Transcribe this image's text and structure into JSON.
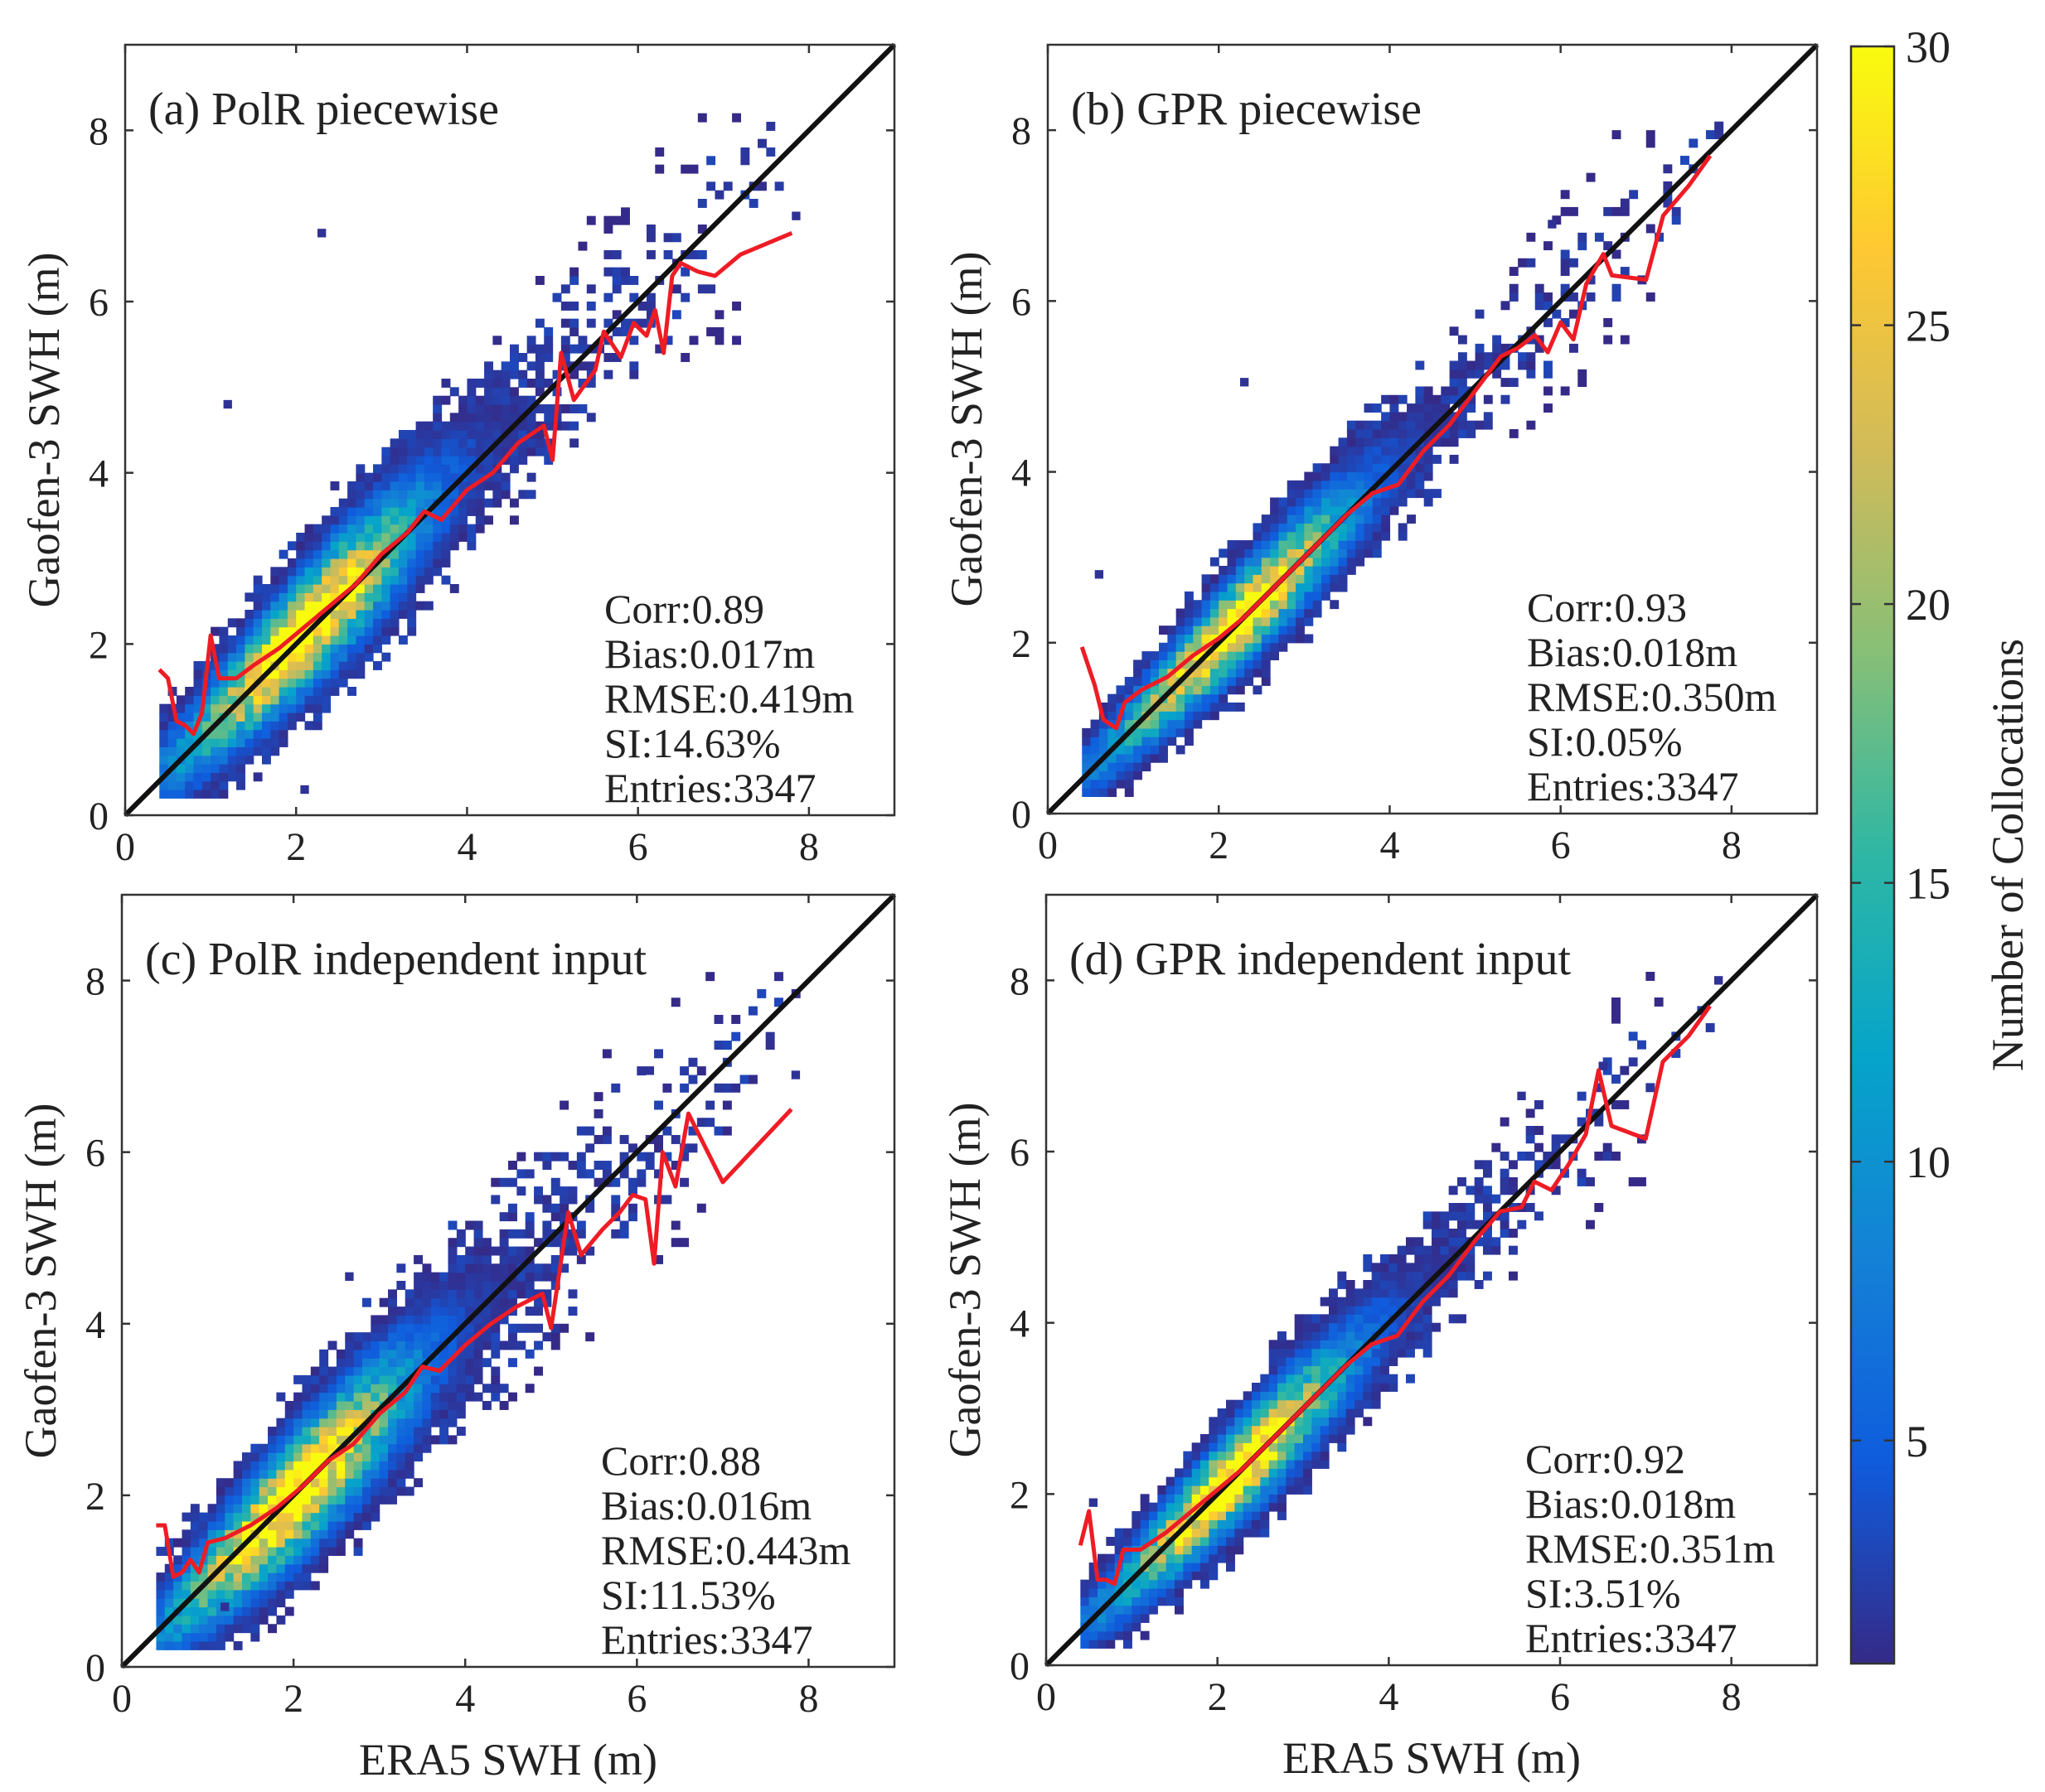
{
  "figure": {
    "colormap": {
      "name": "parula",
      "stops": [
        "#352a87",
        "#0f5cdd",
        "#1481d6",
        "#06a4ca",
        "#2eb7a4",
        "#87bf77",
        "#d1bb59",
        "#fec832",
        "#f9fb0e"
      ]
    },
    "colors": {
      "fit_line": "#ee1c25",
      "one_to_one": "#111111",
      "axes": "#333333"
    }
  },
  "colorbar": {
    "label": "Number of Collocations",
    "range": [
      1,
      30
    ],
    "ticks": [
      "5",
      "10",
      "15",
      "20",
      "25",
      "30"
    ],
    "tick_values": [
      5,
      10,
      15,
      20,
      25,
      30
    ]
  },
  "chart_data": [
    {
      "id": "a",
      "type": "heatmap",
      "title": "(a) PolR piecewise",
      "xlabel": "",
      "ylabel": "Gaofen-3 SWH (m)",
      "xlim": [
        0,
        9
      ],
      "ylim": [
        0,
        9
      ],
      "xticks": [
        "0",
        "2",
        "4",
        "6",
        "8"
      ],
      "yticks": [
        "0",
        "2",
        "4",
        "6",
        "8"
      ],
      "stats": [
        "Corr:0.89",
        "Bias:0.017m",
        "RMSE:0.419m",
        "SI:14.63%",
        "Entries:3347"
      ],
      "density": {
        "spread": 0.42,
        "bias": 0.05,
        "peak_x": 2.1,
        "seed": 11
      },
      "outliers": [
        [
          2.25,
          6.75
        ],
        [
          1.15,
          4.75
        ],
        [
          2.05,
          0.25
        ],
        [
          7.8,
          6.95
        ]
      ],
      "fit_line": [
        [
          0.4,
          1.7
        ],
        [
          0.5,
          1.6
        ],
        [
          0.6,
          1.1
        ],
        [
          0.7,
          1.05
        ],
        [
          0.8,
          0.95
        ],
        [
          0.9,
          1.2
        ],
        [
          1.0,
          2.1
        ],
        [
          1.1,
          1.6
        ],
        [
          1.3,
          1.6
        ],
        [
          1.5,
          1.75
        ],
        [
          1.8,
          1.95
        ],
        [
          2.1,
          2.2
        ],
        [
          2.4,
          2.45
        ],
        [
          2.7,
          2.7
        ],
        [
          3.0,
          3.05
        ],
        [
          3.3,
          3.3
        ],
        [
          3.5,
          3.55
        ],
        [
          3.7,
          3.45
        ],
        [
          4.0,
          3.8
        ],
        [
          4.3,
          4.0
        ],
        [
          4.6,
          4.35
        ],
        [
          4.9,
          4.55
        ],
        [
          5.0,
          4.15
        ],
        [
          5.1,
          5.4
        ],
        [
          5.25,
          4.85
        ],
        [
          5.5,
          5.2
        ],
        [
          5.6,
          5.65
        ],
        [
          5.8,
          5.35
        ],
        [
          5.95,
          5.75
        ],
        [
          6.1,
          5.6
        ],
        [
          6.2,
          5.9
        ],
        [
          6.3,
          5.4
        ],
        [
          6.4,
          6.3
        ],
        [
          6.5,
          6.45
        ],
        [
          6.7,
          6.35
        ],
        [
          6.9,
          6.3
        ],
        [
          7.2,
          6.55
        ],
        [
          7.8,
          6.8
        ]
      ]
    },
    {
      "id": "b",
      "type": "heatmap",
      "title": "(b) GPR piecewise",
      "xlabel": "",
      "ylabel": "Gaofen-3 SWH (m)",
      "xlim": [
        0,
        9
      ],
      "ylim": [
        0,
        9
      ],
      "xticks": [
        "0",
        "2",
        "4",
        "6",
        "8"
      ],
      "yticks": [
        "0",
        "2",
        "4",
        "6",
        "8"
      ],
      "stats": [
        "Corr:0.93",
        "Bias:0.018m",
        "RMSE:0.350m",
        "SI:0.05%",
        "Entries:3347"
      ],
      "density": {
        "spread": 0.33,
        "bias": 0.02,
        "peak_x": 2.2,
        "seed": 23
      },
      "outliers": [
        [
          2.25,
          5.0
        ],
        [
          0.55,
          2.75
        ],
        [
          7.8,
          8.0
        ],
        [
          5.85,
          6.85
        ]
      ],
      "fit_line": [
        [
          0.4,
          1.95
        ],
        [
          0.55,
          1.5
        ],
        [
          0.65,
          1.1
        ],
        [
          0.8,
          1.0
        ],
        [
          0.9,
          1.3
        ],
        [
          1.1,
          1.45
        ],
        [
          1.4,
          1.6
        ],
        [
          1.7,
          1.85
        ],
        [
          2.0,
          2.05
        ],
        [
          2.3,
          2.3
        ],
        [
          2.6,
          2.6
        ],
        [
          2.9,
          2.9
        ],
        [
          3.2,
          3.2
        ],
        [
          3.5,
          3.5
        ],
        [
          3.8,
          3.75
        ],
        [
          4.1,
          3.85
        ],
        [
          4.4,
          4.25
        ],
        [
          4.7,
          4.55
        ],
        [
          5.0,
          4.95
        ],
        [
          5.3,
          5.35
        ],
        [
          5.5,
          5.45
        ],
        [
          5.7,
          5.6
        ],
        [
          5.85,
          5.4
        ],
        [
          6.0,
          5.75
        ],
        [
          6.15,
          5.55
        ],
        [
          6.3,
          6.2
        ],
        [
          6.5,
          6.55
        ],
        [
          6.6,
          6.3
        ],
        [
          7.0,
          6.25
        ],
        [
          7.2,
          7.0
        ],
        [
          7.5,
          7.35
        ],
        [
          7.75,
          7.7
        ]
      ]
    },
    {
      "id": "c",
      "type": "heatmap",
      "title": "(c) PolR independent input",
      "xlabel": "ERA5 SWH (m)",
      "ylabel": "Gaofen-3 SWH (m)",
      "xlim": [
        0,
        9
      ],
      "ylim": [
        0,
        9
      ],
      "xticks": [
        "0",
        "2",
        "4",
        "6",
        "8"
      ],
      "yticks": [
        "0",
        "2",
        "4",
        "6",
        "8"
      ],
      "stats": [
        "Corr:0.88",
        "Bias:0.016m",
        "RMSE:0.443m",
        "SI:11.53%",
        "Entries:3347"
      ],
      "density": {
        "spread": 0.45,
        "bias": -0.02,
        "peak_x": 2.0,
        "seed": 37
      },
      "outliers": [
        [
          1.15,
          0.65
        ],
        [
          7.8,
          6.85
        ],
        [
          6.1,
          6.9
        ],
        [
          2.6,
          4.5
        ]
      ],
      "fit_line": [
        [
          0.4,
          1.65
        ],
        [
          0.5,
          1.65
        ],
        [
          0.6,
          1.05
        ],
        [
          0.7,
          1.1
        ],
        [
          0.8,
          1.25
        ],
        [
          0.9,
          1.1
        ],
        [
          1.0,
          1.45
        ],
        [
          1.2,
          1.5
        ],
        [
          1.5,
          1.65
        ],
        [
          1.8,
          1.85
        ],
        [
          2.1,
          2.1
        ],
        [
          2.4,
          2.4
        ],
        [
          2.7,
          2.6
        ],
        [
          3.0,
          2.95
        ],
        [
          3.3,
          3.2
        ],
        [
          3.5,
          3.5
        ],
        [
          3.7,
          3.45
        ],
        [
          4.0,
          3.75
        ],
        [
          4.3,
          4.0
        ],
        [
          4.6,
          4.2
        ],
        [
          4.9,
          4.35
        ],
        [
          5.0,
          3.95
        ],
        [
          5.2,
          5.3
        ],
        [
          5.35,
          4.8
        ],
        [
          5.6,
          5.1
        ],
        [
          5.8,
          5.3
        ],
        [
          5.95,
          5.5
        ],
        [
          6.1,
          5.45
        ],
        [
          6.2,
          4.7
        ],
        [
          6.3,
          6.0
        ],
        [
          6.45,
          5.6
        ],
        [
          6.6,
          6.45
        ],
        [
          7.0,
          5.65
        ],
        [
          7.8,
          6.5
        ]
      ]
    },
    {
      "id": "d",
      "type": "heatmap",
      "title": "(d) GPR independent input",
      "xlabel": "ERA5 SWH (m)",
      "ylabel": "Gaofen-3 SWH (m)",
      "xlim": [
        0,
        9
      ],
      "ylim": [
        0,
        9
      ],
      "xticks": [
        "0",
        "2",
        "4",
        "6",
        "8"
      ],
      "yticks": [
        "0",
        "2",
        "4",
        "6",
        "8"
      ],
      "stats": [
        "Corr:0.92",
        "Bias:0.018m",
        "RMSE:0.351m",
        "SI:3.51%",
        "Entries:3347"
      ],
      "density": {
        "spread": 0.34,
        "bias": 0.02,
        "peak_x": 2.2,
        "seed": 53
      },
      "outliers": [
        [
          0.5,
          1.85
        ],
        [
          7.8,
          7.95
        ],
        [
          5.5,
          6.6
        ],
        [
          6.45,
          6.95
        ]
      ],
      "fit_line": [
        [
          0.4,
          1.4
        ],
        [
          0.5,
          1.8
        ],
        [
          0.6,
          1.0
        ],
        [
          0.7,
          1.0
        ],
        [
          0.8,
          0.95
        ],
        [
          0.9,
          1.35
        ],
        [
          1.1,
          1.35
        ],
        [
          1.4,
          1.55
        ],
        [
          1.7,
          1.8
        ],
        [
          2.0,
          2.05
        ],
        [
          2.3,
          2.3
        ],
        [
          2.6,
          2.6
        ],
        [
          2.9,
          2.9
        ],
        [
          3.2,
          3.2
        ],
        [
          3.5,
          3.5
        ],
        [
          3.8,
          3.75
        ],
        [
          4.1,
          3.85
        ],
        [
          4.4,
          4.25
        ],
        [
          4.7,
          4.55
        ],
        [
          5.0,
          4.95
        ],
        [
          5.3,
          5.3
        ],
        [
          5.55,
          5.35
        ],
        [
          5.7,
          5.65
        ],
        [
          5.9,
          5.55
        ],
        [
          6.1,
          5.85
        ],
        [
          6.3,
          6.2
        ],
        [
          6.45,
          6.95
        ],
        [
          6.6,
          6.3
        ],
        [
          7.0,
          6.15
        ],
        [
          7.2,
          7.05
        ],
        [
          7.5,
          7.35
        ],
        [
          7.75,
          7.7
        ]
      ]
    }
  ]
}
